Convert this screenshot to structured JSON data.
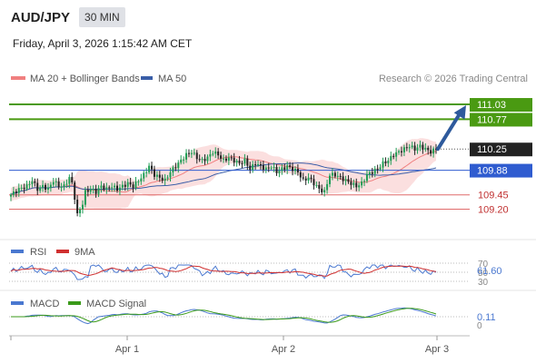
{
  "header": {
    "symbol": "AUD/JPY",
    "timeframe": "30 MIN",
    "datetime": "Friday, April 3, 2026 1:15:42 AM CET"
  },
  "legend": {
    "ma20": "MA 20 + Bollinger Bands",
    "ma50": "MA 50",
    "copyright": "Research © 2026 Trading Central"
  },
  "rsi_legend": {
    "rsi": "RSI",
    "ma": "9MA"
  },
  "macd_legend": {
    "macd": "MACD",
    "signal": "MACD Signal"
  },
  "colors": {
    "up": "#1f9d55",
    "down": "#222222",
    "green_level": "#4a9a12",
    "blue_level": "#2f5cd0",
    "red_level": "#e06c6c",
    "band_fill": "#f9d4d4",
    "ma20": "#f08080",
    "ma50": "#3a5ea8",
    "arrow": "#2e5a9c",
    "rsi": "#4a78d0",
    "rsi_ma": "#d03030",
    "macd": "#4a78d0",
    "macd_signal": "#3a9a1a"
  },
  "chart_data": [
    {
      "type": "candlestick",
      "title": "AUD/JPY 30 MIN",
      "x_ticks": [
        "Apr 1",
        "Apr 2",
        "Apr 3"
      ],
      "ylim": [
        108.7,
        111.3
      ],
      "levels": [
        {
          "value": 111.03,
          "label": "111.03",
          "kind": "resistance"
        },
        {
          "value": 110.77,
          "label": "110.77",
          "kind": "resistance"
        },
        {
          "value": 109.88,
          "label": "109.88",
          "kind": "pivot"
        },
        {
          "value": 109.45,
          "label": "109.45",
          "kind": "support"
        },
        {
          "value": 109.2,
          "label": "109.20",
          "kind": "support"
        }
      ],
      "last_price": {
        "value": 110.25,
        "label": "110.25"
      },
      "anchors": [
        [
          0,
          109.45
        ],
        [
          3,
          109.55
        ],
        [
          6,
          109.6
        ],
        [
          8,
          109.7
        ],
        [
          10,
          109.55
        ],
        [
          12,
          109.6
        ],
        [
          14,
          109.55
        ],
        [
          16,
          109.7
        ],
        [
          18,
          109.6
        ],
        [
          20,
          109.6
        ],
        [
          22,
          109.75
        ],
        [
          23,
          109.65
        ],
        [
          24,
          109.4
        ],
        [
          25,
          109.1
        ],
        [
          26,
          109.2
        ],
        [
          27,
          109.3
        ],
        [
          28,
          109.5
        ],
        [
          30,
          109.55
        ],
        [
          32,
          109.5
        ],
        [
          34,
          109.6
        ],
        [
          36,
          109.55
        ],
        [
          38,
          109.6
        ],
        [
          40,
          109.55
        ],
        [
          42,
          109.6
        ],
        [
          44,
          109.65
        ],
        [
          46,
          109.6
        ],
        [
          48,
          109.7
        ],
        [
          50,
          109.8
        ],
        [
          52,
          109.95
        ],
        [
          54,
          109.8
        ],
        [
          56,
          109.75
        ],
        [
          58,
          109.7
        ],
        [
          60,
          109.85
        ],
        [
          62,
          109.95
        ],
        [
          64,
          110.05
        ],
        [
          66,
          110.15
        ],
        [
          68,
          110.2
        ],
        [
          70,
          110.1
        ],
        [
          72,
          110.05
        ],
        [
          74,
          110.1
        ],
        [
          76,
          110.2
        ],
        [
          78,
          110.15
        ],
        [
          80,
          110.05
        ],
        [
          82,
          110.1
        ],
        [
          84,
          110.05
        ],
        [
          86,
          110.0
        ],
        [
          88,
          110.05
        ],
        [
          90,
          109.9
        ],
        [
          92,
          110.0
        ],
        [
          94,
          109.95
        ],
        [
          96,
          109.9
        ],
        [
          98,
          109.95
        ],
        [
          100,
          109.85
        ],
        [
          102,
          109.9
        ],
        [
          104,
          109.95
        ],
        [
          106,
          109.9
        ],
        [
          108,
          109.85
        ],
        [
          110,
          109.7
        ],
        [
          112,
          109.75
        ],
        [
          114,
          109.65
        ],
        [
          116,
          109.55
        ],
        [
          118,
          109.5
        ],
        [
          120,
          109.8
        ],
        [
          122,
          109.8
        ],
        [
          124,
          109.75
        ],
        [
          126,
          109.7
        ],
        [
          128,
          109.65
        ],
        [
          130,
          109.6
        ],
        [
          132,
          109.65
        ],
        [
          134,
          109.8
        ],
        [
          136,
          109.85
        ],
        [
          138,
          109.9
        ],
        [
          140,
          110.0
        ],
        [
          142,
          110.05
        ],
        [
          144,
          110.15
        ],
        [
          146,
          110.2
        ],
        [
          148,
          110.25
        ],
        [
          150,
          110.3
        ],
        [
          152,
          110.25
        ],
        [
          154,
          110.3
        ],
        [
          156,
          110.25
        ],
        [
          158,
          110.2
        ],
        [
          160,
          110.25
        ]
      ],
      "projection": {
        "from": 110.25,
        "to": 111.03
      }
    },
    {
      "type": "line",
      "title": "RSI",
      "series": [
        {
          "name": "RSI"
        },
        {
          "name": "9MA"
        }
      ],
      "y_ticks": [
        70,
        50,
        30
      ],
      "value_label": "61.60"
    },
    {
      "type": "line",
      "title": "MACD",
      "series": [
        {
          "name": "MACD"
        },
        {
          "name": "MACD Signal"
        }
      ],
      "y_ticks": [
        0
      ],
      "value_label": "0.11"
    }
  ]
}
